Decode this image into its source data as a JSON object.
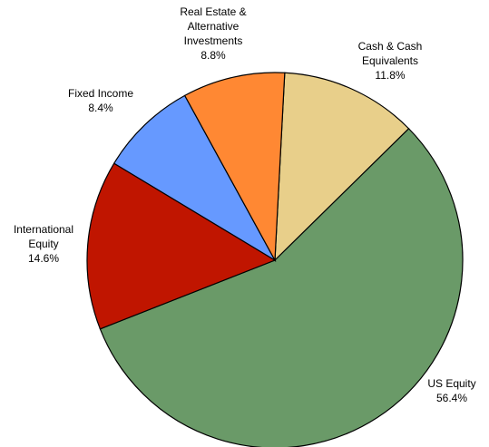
{
  "chart_data": {
    "type": "pie",
    "categories": [
      "Cash & Cash\nEquivalents",
      "US Equity",
      "International\nEquity",
      "Fixed Income",
      "Real Estate &\nAlternative\nInvestments"
    ],
    "values": [
      11.8,
      56.4,
      14.6,
      8.4,
      8.8
    ],
    "value_labels": [
      "11.8%",
      "56.4%",
      "14.6%",
      "8.4%",
      "8.8%"
    ],
    "colors": [
      "#e8cf8a",
      "#6a9a68",
      "#c01500",
      "#6699ff",
      "#ff8833"
    ]
  }
}
